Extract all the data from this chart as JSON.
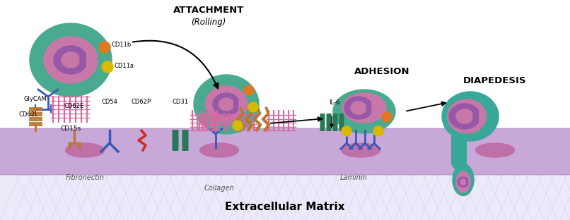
{
  "background_color": "#ffffff",
  "endothelium_color": "#c8a8d8",
  "ecm_color": "#ece8f8",
  "cell_outer_color": "#4aaa90",
  "cell_inner_color": "#c878a8",
  "cell_nucleus_color": "#9858a8",
  "orange_dot": "#e07820",
  "yellow_dot": "#d8b800",
  "blue_connector": "#3858b8",
  "pink_receptor": "#d868a0",
  "brown_receptor": "#b87830",
  "red_receptor": "#c83020",
  "dark_green_receptor": "#287858",
  "teal_diapedesis": "#38a898",
  "labels": {
    "attachment": "ATTACHMENT",
    "rolling": "(Rolling)",
    "adhesion": "ADHESION",
    "diapedesis": "DIAPEDESIS",
    "cd11b": "CD11b",
    "cd11a": "CD11a",
    "cd62l": "CD62L",
    "cd15s": "CD15s",
    "glycam": "GlyCAM",
    "cd62e": "CD62E",
    "cd54": "CD54",
    "cd62p": "CD62P",
    "cd31": "CD31",
    "il6": "IL-6",
    "fibronectin": "Fibronectin",
    "collagen": "Collagen",
    "laminin": "Laminin",
    "extracellular": "Extracellular Matrix"
  },
  "figsize": [
    8.06,
    3.12
  ],
  "dpi": 100
}
